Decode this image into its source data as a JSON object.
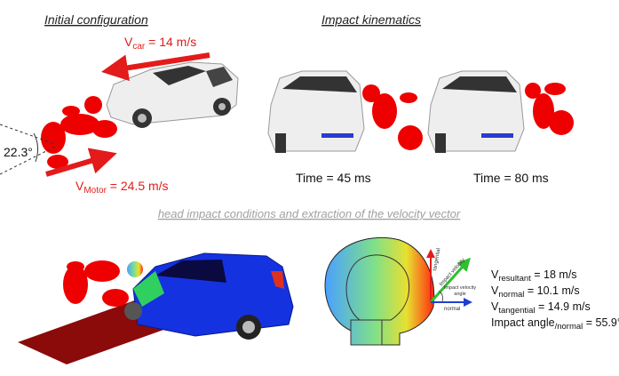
{
  "initial": {
    "title": "Initial configuration",
    "v_car": {
      "symbol": "V",
      "sub": "car",
      "text": " = 14 m/s"
    },
    "v_motor": {
      "symbol": "V",
      "sub": "Motor",
      "text": " = 24.5 m/s"
    },
    "angle": "22.3°"
  },
  "kinematics": {
    "title": "Impact kinematics",
    "frames": [
      "Time = 45 ms",
      "Time = 80 ms"
    ]
  },
  "head_impact": {
    "title": "head impact conditions and extraction of the velocity vector",
    "vectors": {
      "tangential": "tangential",
      "impact_velocity": "Impact velocity",
      "angle": [
        "Impact velocity",
        "angle"
      ],
      "normal": "normal"
    },
    "results": [
      {
        "symbol": "V",
        "sub": "resultant",
        "text": " = 18 m/s"
      },
      {
        "symbol": "V",
        "sub": "normal",
        "text": " = 10.1 m/s"
      },
      {
        "symbol": "V",
        "sub": "tangential",
        "text": " = 14.9 m/s"
      },
      {
        "symbol": "Impact angle",
        "sub": "/normal",
        "text": " = 55.9°"
      }
    ]
  }
}
